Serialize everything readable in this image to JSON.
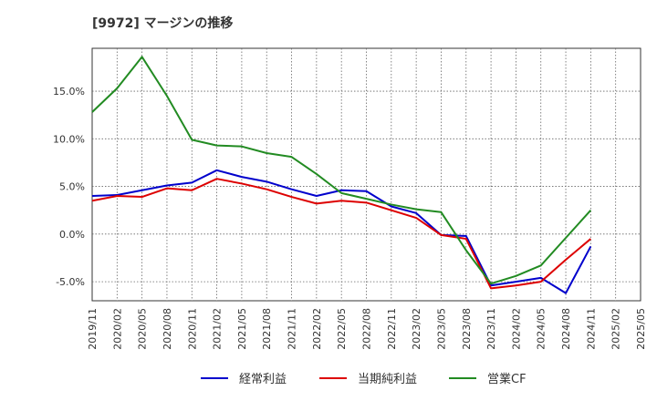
{
  "title": "[9972]  マージンの推移",
  "chart_data": {
    "type": "line",
    "title": "[9972]  マージンの推移",
    "xlabel": "",
    "ylabel": "",
    "x": [
      "2019/11",
      "2020/02",
      "2020/05",
      "2020/08",
      "2020/11",
      "2021/02",
      "2021/05",
      "2021/08",
      "2021/11",
      "2022/02",
      "2022/05",
      "2022/08",
      "2022/11",
      "2023/02",
      "2023/05",
      "2023/08",
      "2023/11",
      "2024/02",
      "2024/05",
      "2024/08",
      "2024/11",
      "2025/02",
      "2025/05"
    ],
    "ylim": [
      -7.0,
      19.5
    ],
    "yticks": [
      -5.0,
      0.0,
      5.0,
      10.0,
      15.0
    ],
    "ytick_labels": [
      "-5.0%",
      "0.0%",
      "5.0%",
      "10.0%",
      "15.0%"
    ],
    "grid": true,
    "legend_position": "bottom",
    "series": [
      {
        "name": "経常利益",
        "color": "#0000cc",
        "values": [
          4.0,
          4.1,
          4.6,
          5.1,
          5.4,
          6.7,
          6.0,
          5.5,
          4.7,
          4.0,
          4.6,
          4.5,
          2.9,
          2.2,
          -0.1,
          -0.2,
          -5.4,
          -5.0,
          -4.6,
          -6.2,
          -1.3,
          null,
          null
        ]
      },
      {
        "name": "当期純利益",
        "color": "#dd0000",
        "values": [
          3.5,
          4.0,
          3.9,
          4.8,
          4.6,
          5.8,
          5.3,
          4.7,
          3.9,
          3.2,
          3.5,
          3.3,
          2.5,
          1.7,
          -0.1,
          -0.5,
          -5.7,
          -5.4,
          -5.0,
          -2.7,
          -0.5,
          null,
          null
        ]
      },
      {
        "name": "営業CF",
        "color": "#228b22",
        "values": [
          12.8,
          15.3,
          18.6,
          14.5,
          9.9,
          9.3,
          9.2,
          8.5,
          8.1,
          6.3,
          4.3,
          3.7,
          3.1,
          2.6,
          2.3,
          -1.7,
          -5.2,
          -4.4,
          -3.3,
          -0.4,
          2.5,
          null,
          null
        ]
      }
    ]
  }
}
